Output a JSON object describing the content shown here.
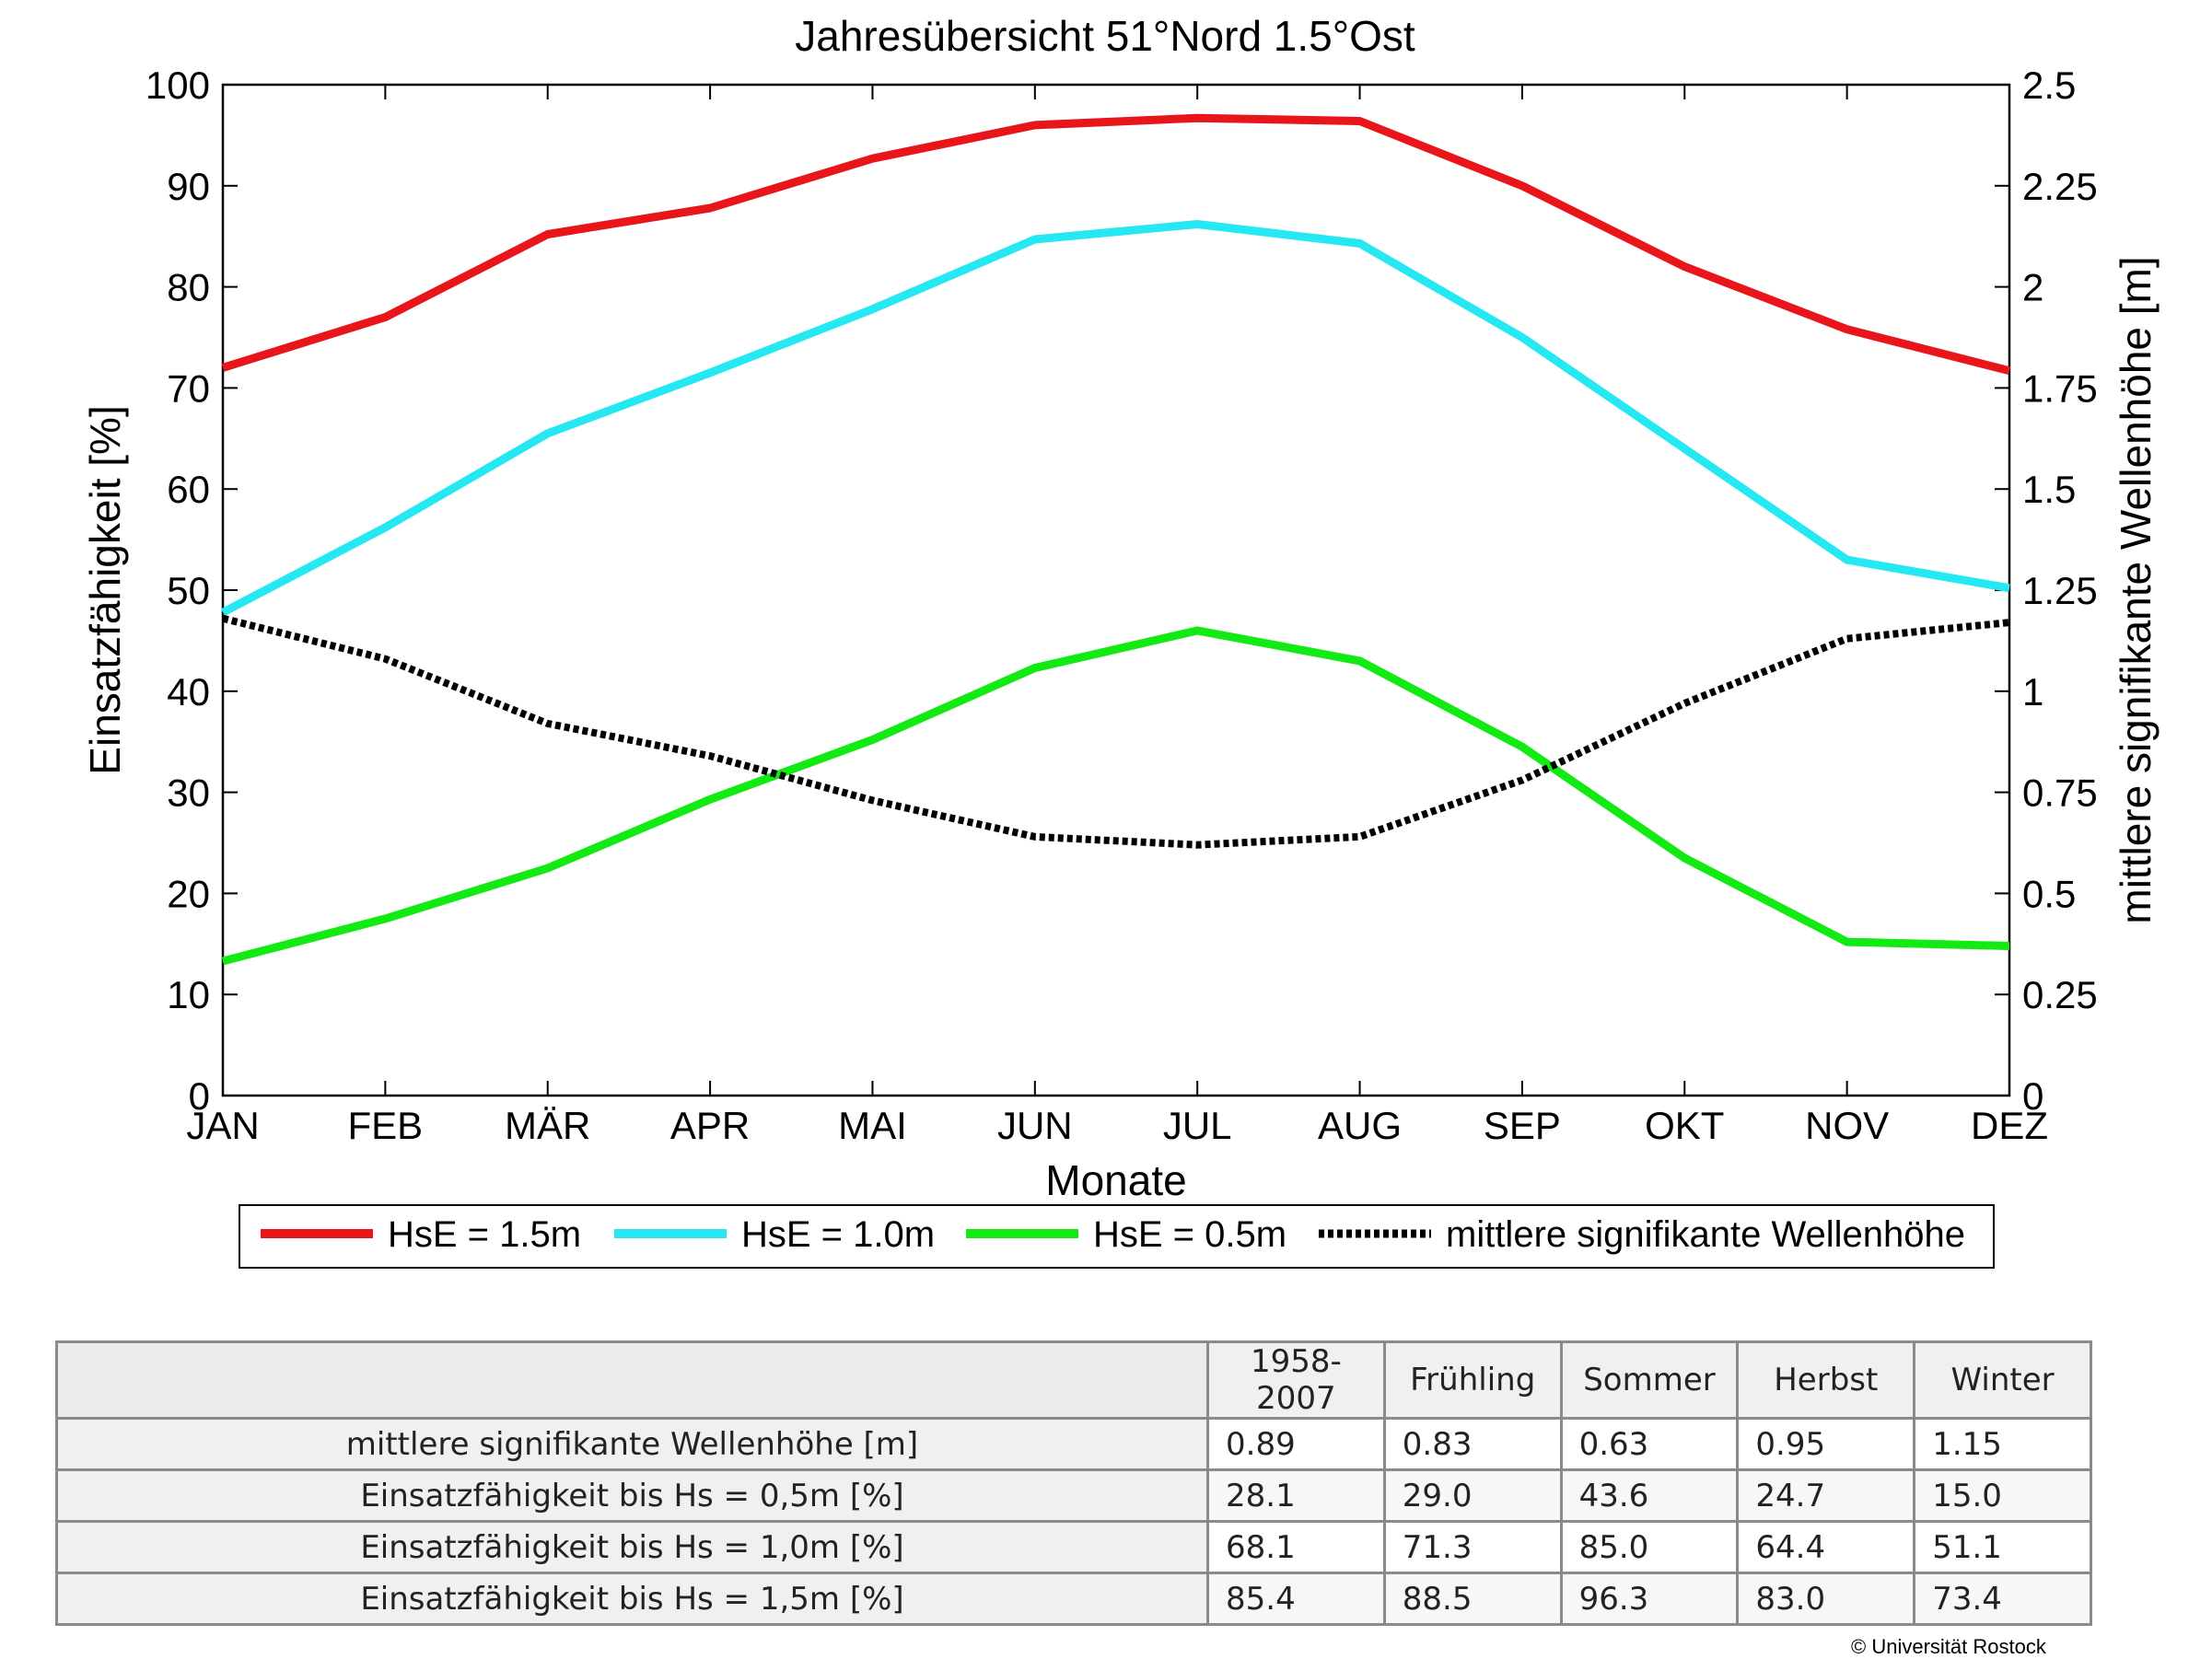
{
  "chart_data": {
    "type": "line",
    "title": "Jahresübersicht  51°Nord  1.5°Ost",
    "xlabel": "Monate",
    "ylabel": "Einsatzfähigkeit [%]",
    "ylabel_right": "mittlere signifikante Wellenhöhe [m]",
    "categories": [
      "JAN",
      "FEB",
      "MÄR",
      "APR",
      "MAI",
      "JUN",
      "JUL",
      "AUG",
      "SEP",
      "OKT",
      "NOV",
      "DEZ"
    ],
    "ylim": [
      0,
      100
    ],
    "ylim_right": [
      0,
      2.5
    ],
    "yticks": [
      "0",
      "10",
      "20",
      "30",
      "40",
      "50",
      "60",
      "70",
      "80",
      "90",
      "100"
    ],
    "yticks_right": [
      "0",
      "0.25",
      "0.5",
      "0.75",
      "1",
      "1.25",
      "1.5",
      "1.75",
      "2",
      "2.25",
      "2.5"
    ],
    "grid": false,
    "legend_position": "bottom",
    "series": [
      {
        "name": "HsE = 1.5m",
        "axis": "left",
        "color": "#e8151b",
        "style": "solid",
        "values": [
          72.0,
          77.0,
          85.2,
          87.8,
          92.7,
          96.0,
          96.7,
          96.4,
          90.0,
          82.0,
          75.8,
          71.7
        ]
      },
      {
        "name": "HsE = 1.0m",
        "axis": "left",
        "color": "#26e8f2",
        "style": "solid",
        "values": [
          47.8,
          56.2,
          65.5,
          71.5,
          77.8,
          84.7,
          86.2,
          84.3,
          75.0,
          64.0,
          53.0,
          50.2
        ]
      },
      {
        "name": "HsE = 0.5m",
        "axis": "left",
        "color": "#13ea13",
        "style": "solid",
        "values": [
          13.3,
          17.5,
          22.5,
          29.3,
          35.2,
          42.3,
          46.0,
          43.0,
          34.5,
          23.5,
          15.2,
          14.8
        ]
      },
      {
        "name": "mittlere signifikante Wellenhöhe",
        "axis": "right",
        "color": "#000000",
        "style": "dotted",
        "values": [
          1.18,
          1.08,
          0.92,
          0.84,
          0.73,
          0.64,
          0.62,
          0.64,
          0.78,
          0.97,
          1.13,
          1.17
        ]
      }
    ]
  },
  "table": {
    "columns": [
      "1958-2007",
      "Frühling",
      "Sommer",
      "Herbst",
      "Winter"
    ],
    "rows": [
      {
        "label": "mittlere signifikante Wellenhöhe [m]",
        "values": [
          "0.89",
          "0.83",
          "0.63",
          "0.95",
          "1.15"
        ]
      },
      {
        "label": "Einsatzfähigkeit bis Hs = 0,5m [%]",
        "values": [
          "28.1",
          "29.0",
          "43.6",
          "24.7",
          "15.0"
        ]
      },
      {
        "label": "Einsatzfähigkeit bis Hs = 1,0m [%]",
        "values": [
          "68.1",
          "71.3",
          "85.0",
          "64.4",
          "51.1"
        ]
      },
      {
        "label": "Einsatzfähigkeit bis Hs = 1,5m [%]",
        "values": [
          "85.4",
          "88.5",
          "96.3",
          "83.0",
          "73.4"
        ]
      }
    ]
  },
  "copyright": "© Universität Rostock"
}
